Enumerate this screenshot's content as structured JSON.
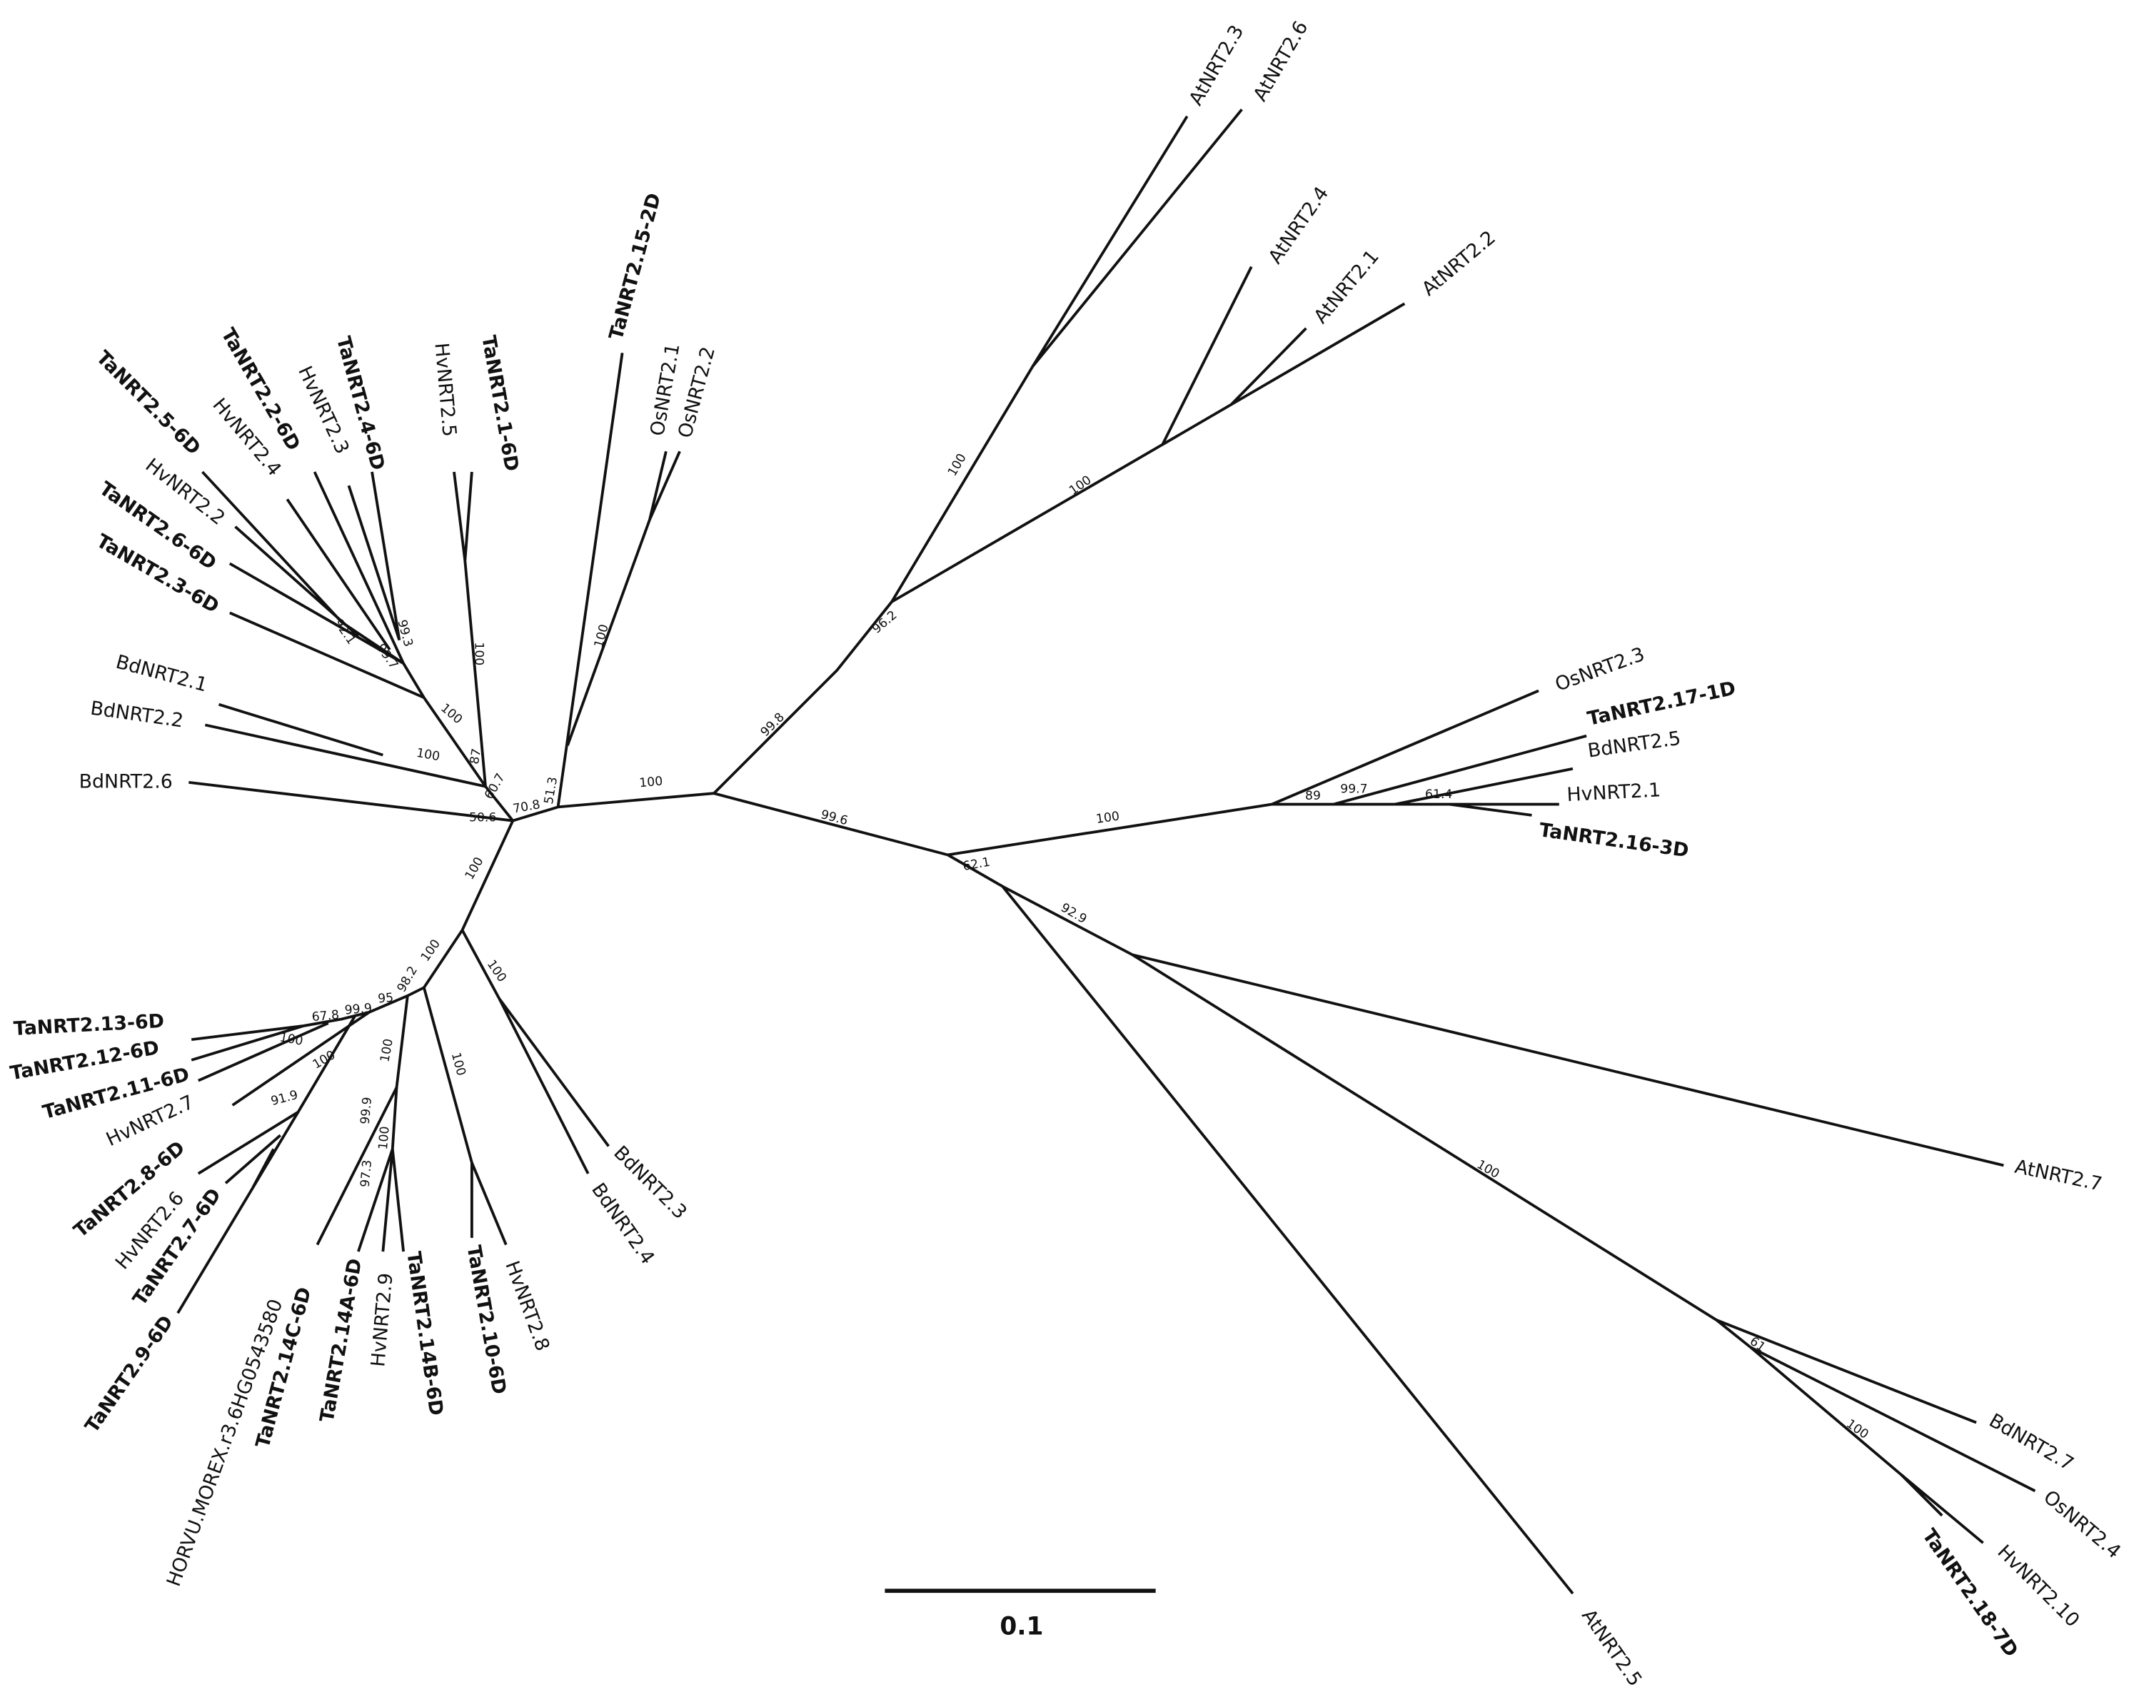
{
  "leaves": [
    "AtNRT2.3",
    "AtNRT2.6",
    "AtNRT2.4",
    "AtNRT2.1",
    "AtNRT2.2",
    "OsNRT2.3",
    "TaNRT2.17-1D",
    "BdNRT2.5",
    "HvNRT2.1",
    "TaNRT2.16-3D",
    "AtNRT2.7",
    "BdNRT2.7",
    "OsNRT2.4",
    "HvNRT2.10",
    "TaNRT2.18-7D",
    "AtNRT2.5",
    "BdNRT2.3",
    "BdNRT2.4",
    "HvNRT2.8",
    "TaNRT2.10-6D",
    "TaNRT2.14B-6D",
    "HvNRT2.9",
    "TaNRT2.14A-6D",
    "TaNRT2.14C-6D",
    "HORVU.MOREX.r3.6HG0543580",
    "TaNRT2.9-6D",
    "TaNRT2.7-6D",
    "HvNRT2.6",
    "TaNRT2.8-6D",
    "HvNRT2.7",
    "TaNRT2.11-6D",
    "TaNRT2.12-6D",
    "TaNRT2.13-6D",
    "BdNRT2.6",
    "BdNRT2.2",
    "BdNRT2.1",
    "TaNRT2.3-6D",
    "TaNRT2.6-6D",
    "HvNRT2.2",
    "TaNRT2.5-6D",
    "HvNRT2.4",
    "TaNRT2.2-6D",
    "HvNRT2.3",
    "TaNRT2.4-6D",
    "HvNRT2.5",
    "TaNRT2.1-6D",
    "TaNRT2.15-2D",
    "OsNRT2.1",
    "OsNRT2.2"
  ],
  "support_values": [
    100,
    99.6,
    99.8,
    96.2,
    100,
    100,
    100,
    89,
    99.7,
    61.4,
    62.1,
    92.9,
    100,
    61,
    100,
    70.8,
    51.3,
    100,
    60.7,
    50.6,
    87,
    100,
    100,
    92.1,
    99.7,
    99.3,
    100,
    100,
    100,
    100,
    98.2,
    100,
    95,
    99.9,
    67.8,
    100,
    100,
    91.9,
    100,
    99.9,
    97.3,
    100
  ],
  "scale_bar": {
    "label": "0.1"
  }
}
